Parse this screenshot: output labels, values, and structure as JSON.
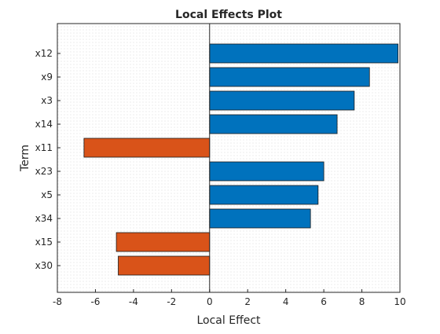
{
  "chart_data": {
    "type": "bar",
    "orientation": "horizontal",
    "title": "Local Effects Plot",
    "xlabel": "Local Effect",
    "ylabel": "Term",
    "xlim": [
      -8,
      10
    ],
    "x_ticks": [
      -8,
      -6,
      -4,
      -2,
      0,
      2,
      4,
      6,
      8,
      10
    ],
    "categories": [
      "x12",
      "x9",
      "x3",
      "x14",
      "x11",
      "x23",
      "x5",
      "x34",
      "x15",
      "x30"
    ],
    "values": [
      9.9,
      8.4,
      7.6,
      6.7,
      -6.6,
      6.0,
      5.7,
      5.3,
      -4.9,
      -4.8
    ],
    "positive_color": "#0072BD",
    "negative_color": "#D95319",
    "grid": "minor-dotted",
    "legend": "none"
  }
}
